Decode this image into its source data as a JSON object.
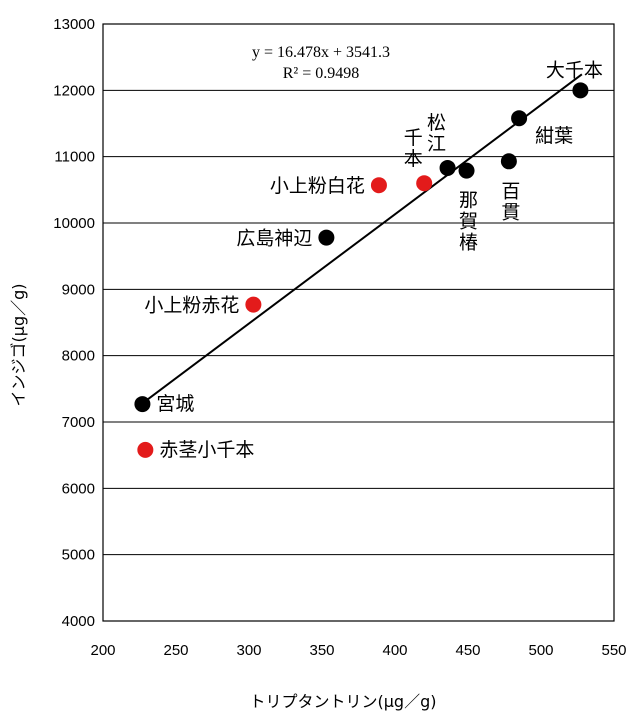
{
  "chart_data": {
    "type": "scatter",
    "xlabel": "トリプタントリン(μg／g)",
    "ylabel": "インジゴ(μg／g)",
    "xlim": [
      200,
      550
    ],
    "ylim": [
      4000,
      13000
    ],
    "xticks": [
      200,
      250,
      300,
      350,
      400,
      450,
      500,
      550
    ],
    "yticks": [
      4000,
      5000,
      6000,
      7000,
      8000,
      9000,
      10000,
      11000,
      12000,
      13000
    ],
    "grid": "horizontal",
    "equation": "y = 16.478x + 3541.3",
    "r_squared": "R² = 0.9498",
    "trendline": {
      "x": [
        226,
        528
      ]
    },
    "colors": {
      "black": "#000000",
      "red": "#e31b1b"
    },
    "points": [
      {
        "label": "宮城",
        "x": 227,
        "y": 7270,
        "color": "black",
        "label_pos": "right",
        "vertical": false
      },
      {
        "label": "赤茎小千本",
        "x": 229,
        "y": 6580,
        "color": "red",
        "label_pos": "right",
        "vertical": false
      },
      {
        "label": "小上粉赤花",
        "x": 303,
        "y": 8770,
        "color": "red",
        "label_pos": "left",
        "vertical": false
      },
      {
        "label": "広島神辺",
        "x": 353,
        "y": 9780,
        "color": "black",
        "label_pos": "left",
        "vertical": false
      },
      {
        "label": "小上粉白花",
        "x": 389,
        "y": 10570,
        "color": "red",
        "label_pos": "left",
        "vertical": false
      },
      {
        "label": "千本",
        "x": 420,
        "y": 10600,
        "color": "red",
        "label_pos": "above-vertical",
        "vertical": true
      },
      {
        "label": "松江",
        "x": 436,
        "y": 10830,
        "color": "black",
        "label_pos": "above-vertical",
        "vertical": true
      },
      {
        "label": "那賀椿",
        "x": 449,
        "y": 10790,
        "color": "black",
        "label_pos": "below-vertical",
        "vertical": true
      },
      {
        "label": "百貫",
        "x": 478,
        "y": 10930,
        "color": "black",
        "label_pos": "below-vertical",
        "vertical": true
      },
      {
        "label": "紺葉",
        "x": 485,
        "y": 11580,
        "color": "black",
        "label_pos": "right-below",
        "vertical": false
      },
      {
        "label": "大千本",
        "x": 527,
        "y": 12000,
        "color": "black",
        "label_pos": "above",
        "vertical": false
      }
    ]
  }
}
